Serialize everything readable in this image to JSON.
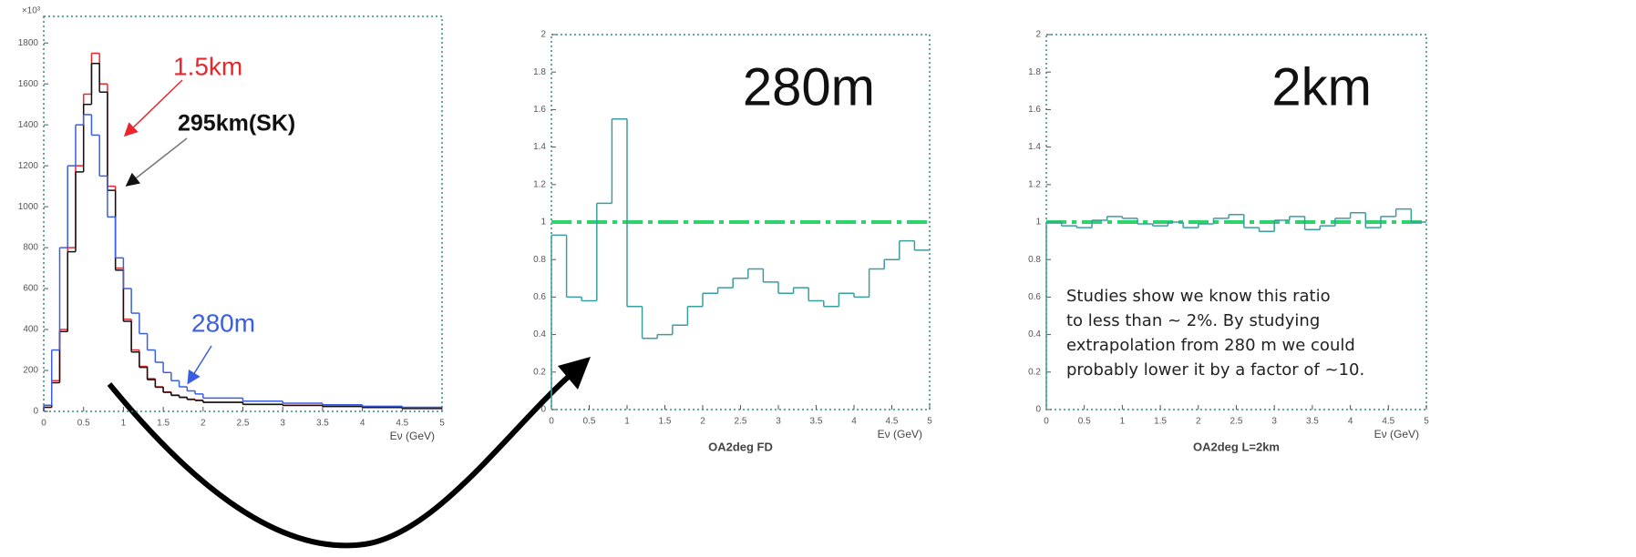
{
  "chart_data": [
    {
      "type": "histogram",
      "multiplier": "×10³",
      "xlabel": "Eν (GeV)",
      "bins": [
        0,
        0.1,
        0.2,
        0.3,
        0.4,
        0.5,
        0.6,
        0.7,
        0.8,
        0.9,
        1.0,
        1.1,
        1.2,
        1.3,
        1.4,
        1.5,
        1.6,
        1.7,
        1.8,
        1.9,
        2.0,
        2.5,
        3,
        3.5,
        4,
        4.5,
        5
      ],
      "series": [
        {
          "name": "1.5km",
          "color": "#e8262c",
          "values": [
            20,
            150,
            400,
            800,
            1200,
            1550,
            1750,
            1600,
            1100,
            700,
            450,
            300,
            220,
            160,
            120,
            95,
            80,
            70,
            60,
            55,
            45,
            35,
            30,
            25,
            20,
            15
          ]
        },
        {
          "name": "295km(SK)",
          "color": "#111111",
          "values": [
            20,
            140,
            390,
            780,
            1170,
            1500,
            1700,
            1560,
            1080,
            690,
            440,
            290,
            215,
            155,
            118,
            93,
            78,
            68,
            58,
            53,
            44,
            34,
            29,
            24,
            19,
            14
          ]
        },
        {
          "name": "280m",
          "color": "#3a5ee0",
          "values": [
            30,
            300,
            800,
            1200,
            1400,
            1450,
            1350,
            1150,
            950,
            750,
            600,
            480,
            380,
            300,
            240,
            190,
            150,
            120,
            100,
            85,
            65,
            50,
            40,
            32,
            25,
            20
          ]
        }
      ],
      "xlim": [
        0,
        5
      ],
      "xticks": [
        0,
        0.5,
        1,
        1.5,
        2,
        2.5,
        3,
        3.5,
        4,
        4.5,
        5
      ],
      "ylim": [
        0,
        1930
      ],
      "yticks": [
        0,
        200,
        400,
        600,
        800,
        1000,
        1200,
        1400,
        1600,
        1800
      ]
    },
    {
      "type": "histogram",
      "title": "280m",
      "caption": "OA2deg FD",
      "xlabel": "Eν (GeV)",
      "color": "#3a9e9e",
      "bins": [
        0,
        0.2,
        0.4,
        0.6,
        0.8,
        1.0,
        1.2,
        1.4,
        1.6,
        1.8,
        2.0,
        2.2,
        2.4,
        2.6,
        2.8,
        3.0,
        3.2,
        3.4,
        3.6,
        3.8,
        4.0,
        4.2,
        4.4,
        4.6,
        4.8,
        5.0
      ],
      "values": [
        0.93,
        0.6,
        0.58,
        1.1,
        1.55,
        0.55,
        0.38,
        0.4,
        0.45,
        0.55,
        0.62,
        0.65,
        0.7,
        0.75,
        0.68,
        0.62,
        0.65,
        0.58,
        0.55,
        0.62,
        0.6,
        0.75,
        0.8,
        0.9,
        0.85
      ],
      "hline": 1,
      "hline_color": "#2ed36b",
      "xlim": [
        0,
        5
      ],
      "xticks": [
        0,
        0.5,
        1,
        1.5,
        2,
        2.5,
        3,
        3.5,
        4,
        4.5,
        5
      ],
      "ylim": [
        0,
        2
      ],
      "yticks": [
        0,
        0.2,
        0.4,
        0.6,
        0.8,
        1,
        1.2,
        1.4,
        1.6,
        1.8,
        2
      ]
    },
    {
      "type": "histogram",
      "title": "2km",
      "caption": "OA2deg L=2km",
      "xlabel": "Eν (GeV)",
      "color": "#3a9e9e",
      "bins": [
        0,
        0.2,
        0.4,
        0.6,
        0.8,
        1.0,
        1.2,
        1.4,
        1.6,
        1.8,
        2.0,
        2.2,
        2.4,
        2.6,
        2.8,
        3.0,
        3.2,
        3.4,
        3.6,
        3.8,
        4.0,
        4.2,
        4.4,
        4.6,
        4.8,
        5.0
      ],
      "values": [
        1.0,
        0.98,
        0.97,
        1.01,
        1.03,
        1.02,
        0.99,
        0.98,
        1.0,
        0.97,
        0.99,
        1.02,
        1.04,
        0.97,
        0.95,
        1.01,
        1.03,
        0.96,
        0.98,
        1.02,
        1.05,
        0.97,
        1.03,
        1.07,
        1.0
      ],
      "hline": 1,
      "hline_color": "#2ed36b",
      "note": [
        "Studies show we know this ratio",
        "to less than ~ 2%.  By studying",
        "extrapolation from 280 m we could",
        "probably lower it by a factor of ~10."
      ],
      "xlim": [
        0,
        5
      ],
      "xticks": [
        0,
        0.5,
        1,
        1.5,
        2,
        2.5,
        3,
        3.5,
        4,
        4.5,
        5
      ],
      "ylim": [
        0,
        2
      ],
      "yticks": [
        0,
        0.2,
        0.4,
        0.6,
        0.8,
        1,
        1.2,
        1.4,
        1.6,
        1.8,
        2
      ]
    }
  ]
}
